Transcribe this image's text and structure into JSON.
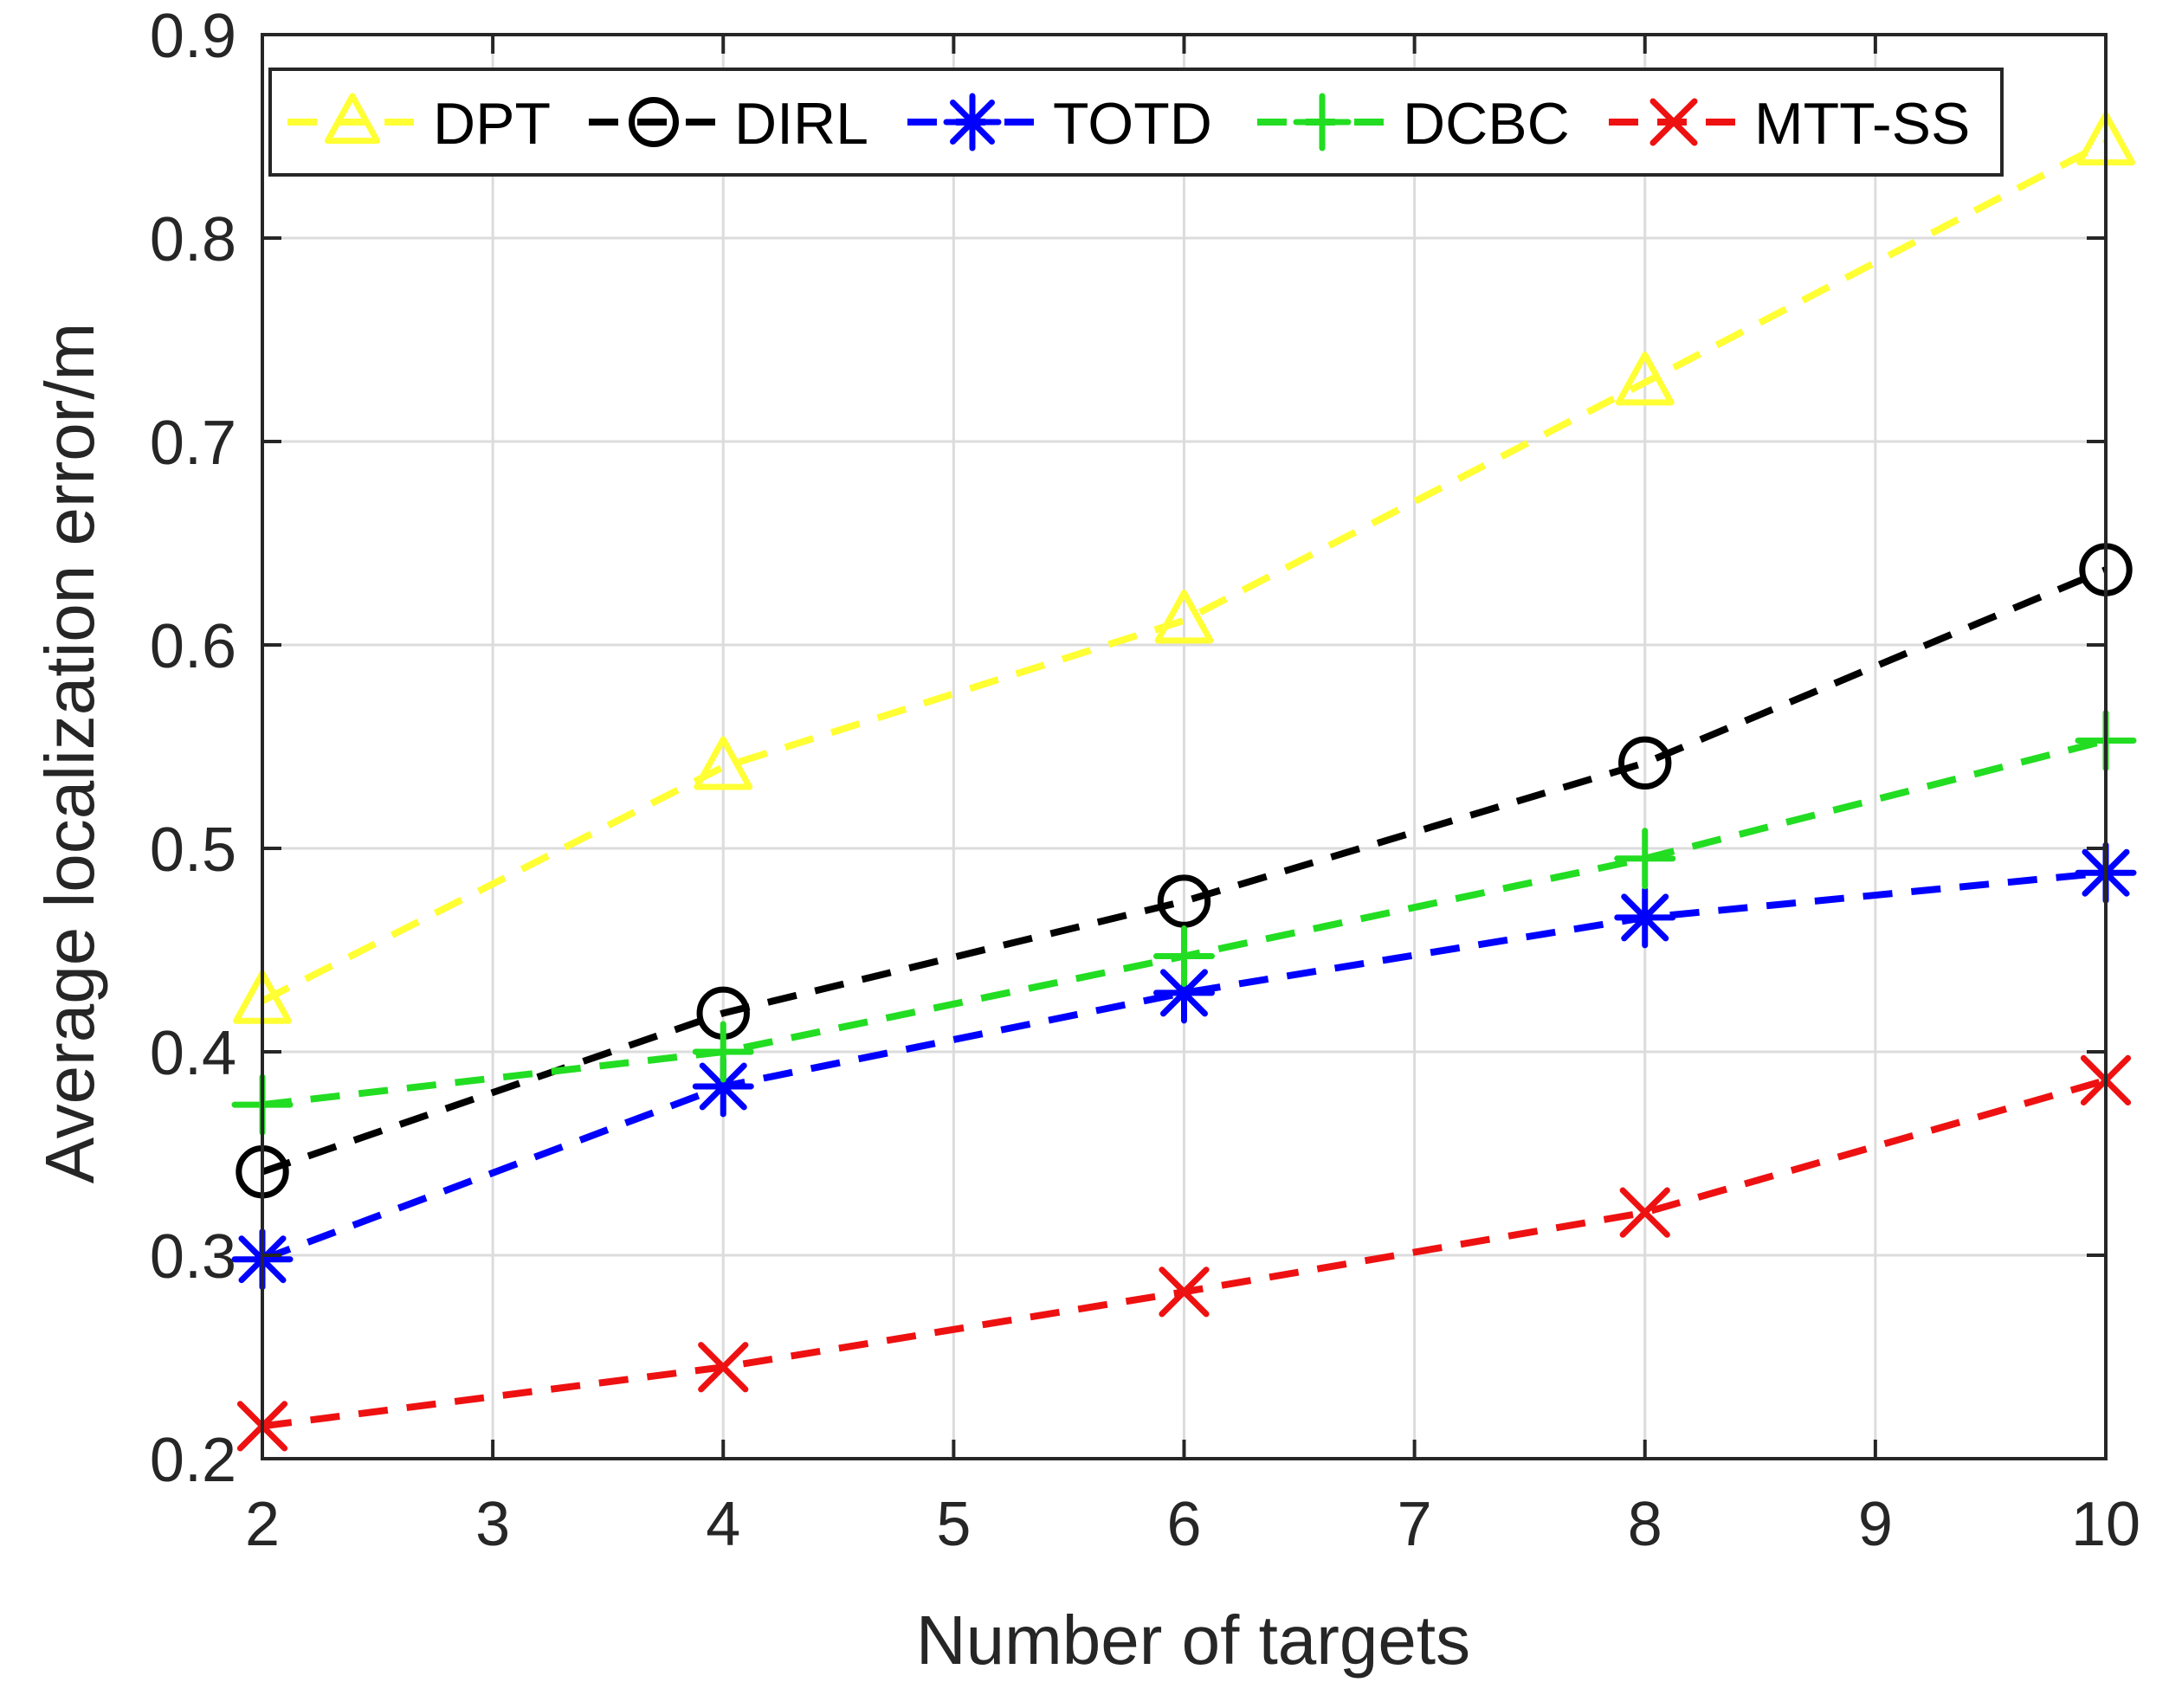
{
  "chart_data": {
    "type": "line",
    "title": "",
    "xlabel": "Number of targets",
    "ylabel": "Average localization error/m",
    "xlim": [
      2,
      10
    ],
    "ylim": [
      0.2,
      0.9
    ],
    "xticks": [
      2,
      3,
      4,
      5,
      6,
      7,
      8,
      9,
      10
    ],
    "yticks": [
      0.2,
      0.3,
      0.4,
      0.5,
      0.6,
      0.7,
      0.8,
      0.9
    ],
    "xtick_labels": [
      "2",
      "3",
      "4",
      "5",
      "6",
      "7",
      "8",
      "9",
      "10"
    ],
    "ytick_labels": [
      "0.2",
      "0.3",
      "0.4",
      "0.5",
      "0.6",
      "0.7",
      "0.8",
      "0.9"
    ],
    "grid": true,
    "legend_position": "top",
    "x": [
      2,
      4,
      6,
      8,
      10
    ],
    "series": [
      {
        "name": "DPT",
        "color": "#ffff33",
        "marker": "triangle",
        "values": [
          0.425,
          0.54,
          0.612,
          0.729,
          0.847
        ]
      },
      {
        "name": "DIRL",
        "color": "#000000",
        "marker": "circle",
        "values": [
          0.341,
          0.419,
          0.474,
          0.542,
          0.637
        ]
      },
      {
        "name": "TOTD",
        "color": "#0000ff",
        "marker": "asterisk",
        "values": [
          0.298,
          0.383,
          0.429,
          0.466,
          0.488
        ]
      },
      {
        "name": "DCBC",
        "color": "#22dd22",
        "marker": "plus",
        "values": [
          0.374,
          0.4,
          0.447,
          0.495,
          0.553
        ]
      },
      {
        "name": "MTT-SS",
        "color": "#ee1111",
        "marker": "x",
        "values": [
          0.216,
          0.245,
          0.282,
          0.321,
          0.386
        ]
      }
    ]
  }
}
